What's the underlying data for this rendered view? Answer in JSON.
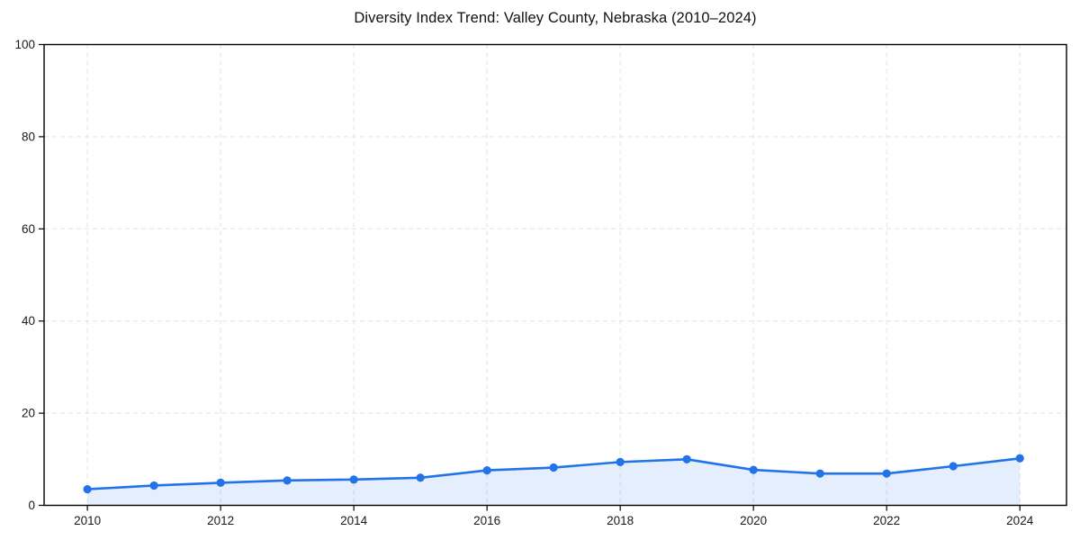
{
  "chart_data": {
    "type": "area",
    "title": "Diversity Index Trend: Valley County, Nebraska (2010–2024)",
    "x": [
      2010,
      2011,
      2012,
      2013,
      2014,
      2015,
      2016,
      2017,
      2018,
      2019,
      2020,
      2021,
      2022,
      2023,
      2024
    ],
    "values": [
      3.5,
      4.3,
      4.9,
      5.4,
      5.6,
      6.0,
      7.6,
      8.2,
      9.4,
      10.0,
      7.7,
      6.9,
      6.9,
      8.5,
      10.2
    ],
    "xlabel": "",
    "ylabel": "",
    "xlim": [
      2009.35,
      2024.7
    ],
    "ylim": [
      0,
      100
    ],
    "x_ticks": {
      "values": [
        2010,
        2012,
        2014,
        2016,
        2018,
        2020,
        2022,
        2024
      ],
      "labels": [
        "2010",
        "2012",
        "2014",
        "2016",
        "2018",
        "2020",
        "2022",
        "2024"
      ]
    },
    "y_ticks": {
      "values": [
        0,
        20,
        40,
        60,
        80,
        100
      ],
      "labels": [
        "0",
        "20",
        "40",
        "60",
        "80",
        "100"
      ]
    },
    "grid": "dashed",
    "legend_position": "none",
    "colors": {
      "line": "#2272e8",
      "marker": "#2272e8",
      "area_fill": "rgba(34,114,232,0.12)",
      "grid": "#e2e2e2",
      "axis": "#000000",
      "tick_text": "#1a1a1a",
      "background": "#ffffff"
    }
  }
}
